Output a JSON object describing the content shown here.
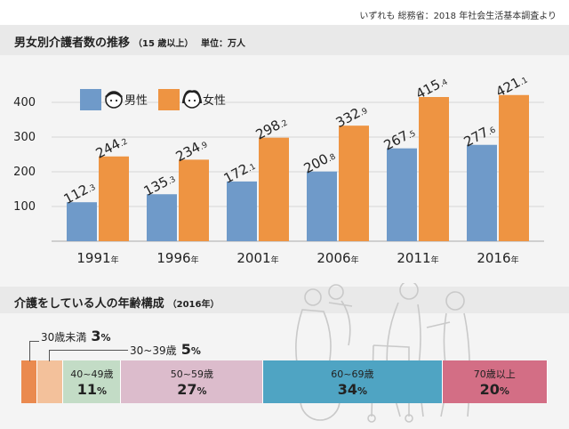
{
  "source_note": "いずれも 総務省：2018 年社会生活基本調査より",
  "top_chart": {
    "title": "男女別介護者数の推移",
    "title_sub": "（15 歳以上）",
    "unit": "単位：万人"
  },
  "bottom_chart": {
    "title": "介護をしている人の年齢構成",
    "title_sub": "（2016年）"
  },
  "colors": {
    "male": "#6f9ac9",
    "female": "#ee9442",
    "age_under30": "#ea8a4f",
    "age_30s": "#f3c19b",
    "age_40s": "#c3dcc6",
    "age_50s": "#dcbccc",
    "age_60s": "#4fa4c3",
    "age_70plus": "#d36e85"
  },
  "chart_data": [
    {
      "type": "bar",
      "categories": [
        "1991年",
        "1996年",
        "2001年",
        "2006年",
        "2011年",
        "2016年"
      ],
      "series": [
        {
          "name": "男性",
          "values": [
            112.3,
            135.3,
            172.1,
            200.8,
            267.5,
            277.6
          ]
        },
        {
          "name": "女性",
          "values": [
            244.2,
            234.9,
            298.2,
            332.9,
            415.4,
            421.1
          ]
        }
      ],
      "title": "男女別介護者数の推移",
      "ylabel": "単位：万人",
      "ylim": [
        0,
        450
      ],
      "yticks": [
        100,
        200,
        300,
        400
      ],
      "grid": true,
      "legend": "top-left"
    },
    {
      "type": "bar",
      "orientation": "horizontal-stacked",
      "title": "介護をしている人の年齢構成",
      "segments": [
        {
          "label": "30歳未満",
          "value": 3
        },
        {
          "label": "30~39歳",
          "value": 5
        },
        {
          "label": "40~49歳",
          "value": 11
        },
        {
          "label": "50~59歳",
          "value": 27
        },
        {
          "label": "60~69歳",
          "value": 34
        },
        {
          "label": "70歳以上",
          "value": 20
        }
      ],
      "unit": "%"
    }
  ]
}
